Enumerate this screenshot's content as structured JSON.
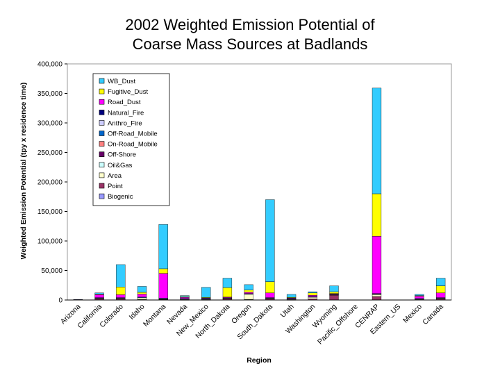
{
  "chart_data": {
    "type": "bar",
    "stacked": true,
    "title_lines": [
      "2002 Weighted Emission Potential of",
      "Coarse Mass Sources at Badlands"
    ],
    "xlabel": "Region",
    "ylabel": "Weighted Emission Potential (tpy x residence time)",
    "ylim": [
      0,
      400000
    ],
    "yticks": [
      0,
      50000,
      100000,
      150000,
      200000,
      250000,
      300000,
      350000,
      400000
    ],
    "ytick_labels": [
      "0",
      "50,000",
      "100,000",
      "150,000",
      "200,000",
      "250,000",
      "300,000",
      "350,000",
      "400,000"
    ],
    "categories": [
      "Arizona",
      "California",
      "Colorado",
      "Idaho",
      "Montana",
      "Nevada",
      "New_Mexico",
      "North_Dakota",
      "Oregon",
      "South_Dakota",
      "Utah",
      "Washington",
      "Wyoming",
      "Pacific_Offshore",
      "CENRAP",
      "Eastern_US",
      "Mexico",
      "Canada"
    ],
    "legend_position": "top-left",
    "series": [
      {
        "name": "Biogenic",
        "color": "#9999ff",
        "values": [
          0,
          0,
          0,
          0,
          0,
          0,
          0,
          0,
          0,
          0,
          0,
          0,
          0,
          0,
          0,
          0,
          0,
          0
        ]
      },
      {
        "name": "Point",
        "color": "#993366",
        "values": [
          0,
          2000,
          2000,
          1000,
          1000,
          500,
          500,
          2000,
          1000,
          2000,
          500,
          2000,
          8000,
          0,
          6000,
          0,
          1000,
          2000
        ]
      },
      {
        "name": "Area",
        "color": "#ffffcc",
        "values": [
          0,
          1000,
          1000,
          3000,
          1000,
          1000,
          1000,
          1000,
          9000,
          1000,
          1000,
          3000,
          1000,
          0,
          3000,
          0,
          500,
          1000
        ]
      },
      {
        "name": "Oil&Gas",
        "color": "#ccffff",
        "values": [
          0,
          0,
          0,
          0,
          0,
          0,
          0,
          0,
          0,
          0,
          0,
          0,
          0,
          0,
          0,
          0,
          0,
          0
        ]
      },
      {
        "name": "Off-Shore",
        "color": "#660066",
        "values": [
          0,
          0,
          0,
          0,
          0,
          0,
          0,
          0,
          0,
          0,
          0,
          0,
          0,
          0,
          0,
          0,
          0,
          0
        ]
      },
      {
        "name": "On-Road_Mobile",
        "color": "#ff8080",
        "values": [
          0,
          500,
          500,
          500,
          500,
          500,
          500,
          500,
          500,
          500,
          500,
          500,
          500,
          0,
          1000,
          0,
          500,
          500
        ]
      },
      {
        "name": "Off-Road_Mobile",
        "color": "#0066cc",
        "values": [
          0,
          500,
          500,
          500,
          500,
          500,
          500,
          500,
          500,
          500,
          500,
          500,
          500,
          0,
          1000,
          0,
          500,
          500
        ]
      },
      {
        "name": "Anthro_Fire",
        "color": "#ccccff",
        "values": [
          0,
          0,
          0,
          0,
          0,
          0,
          0,
          0,
          0,
          0,
          0,
          0,
          0,
          0,
          0,
          0,
          0,
          0
        ]
      },
      {
        "name": "Natural_Fire",
        "color": "#000080",
        "values": [
          1000,
          0,
          0,
          0,
          0,
          0,
          0,
          0,
          0,
          0,
          0,
          0,
          0,
          0,
          0,
          0,
          0,
          0
        ]
      },
      {
        "name": "Road_Dust",
        "color": "#ff00ff",
        "values": [
          0,
          5000,
          5000,
          5000,
          42000,
          2000,
          1000,
          1000,
          2000,
          8000,
          1000,
          2000,
          1000,
          0,
          97000,
          0,
          4000,
          8000
        ]
      },
      {
        "name": "Fugitive_Dust",
        "color": "#ffff00",
        "values": [
          0,
          1000,
          13000,
          3000,
          8000,
          1000,
          1000,
          16000,
          4000,
          19000,
          1000,
          4000,
          3000,
          0,
          72000,
          0,
          1000,
          12000
        ]
      },
      {
        "name": "WB_Dust",
        "color": "#33ccff",
        "values": [
          0,
          2000,
          38000,
          10000,
          75000,
          2000,
          17000,
          16000,
          9000,
          139000,
          5000,
          2000,
          10000,
          0,
          179000,
          0,
          2000,
          13000
        ]
      }
    ]
  }
}
